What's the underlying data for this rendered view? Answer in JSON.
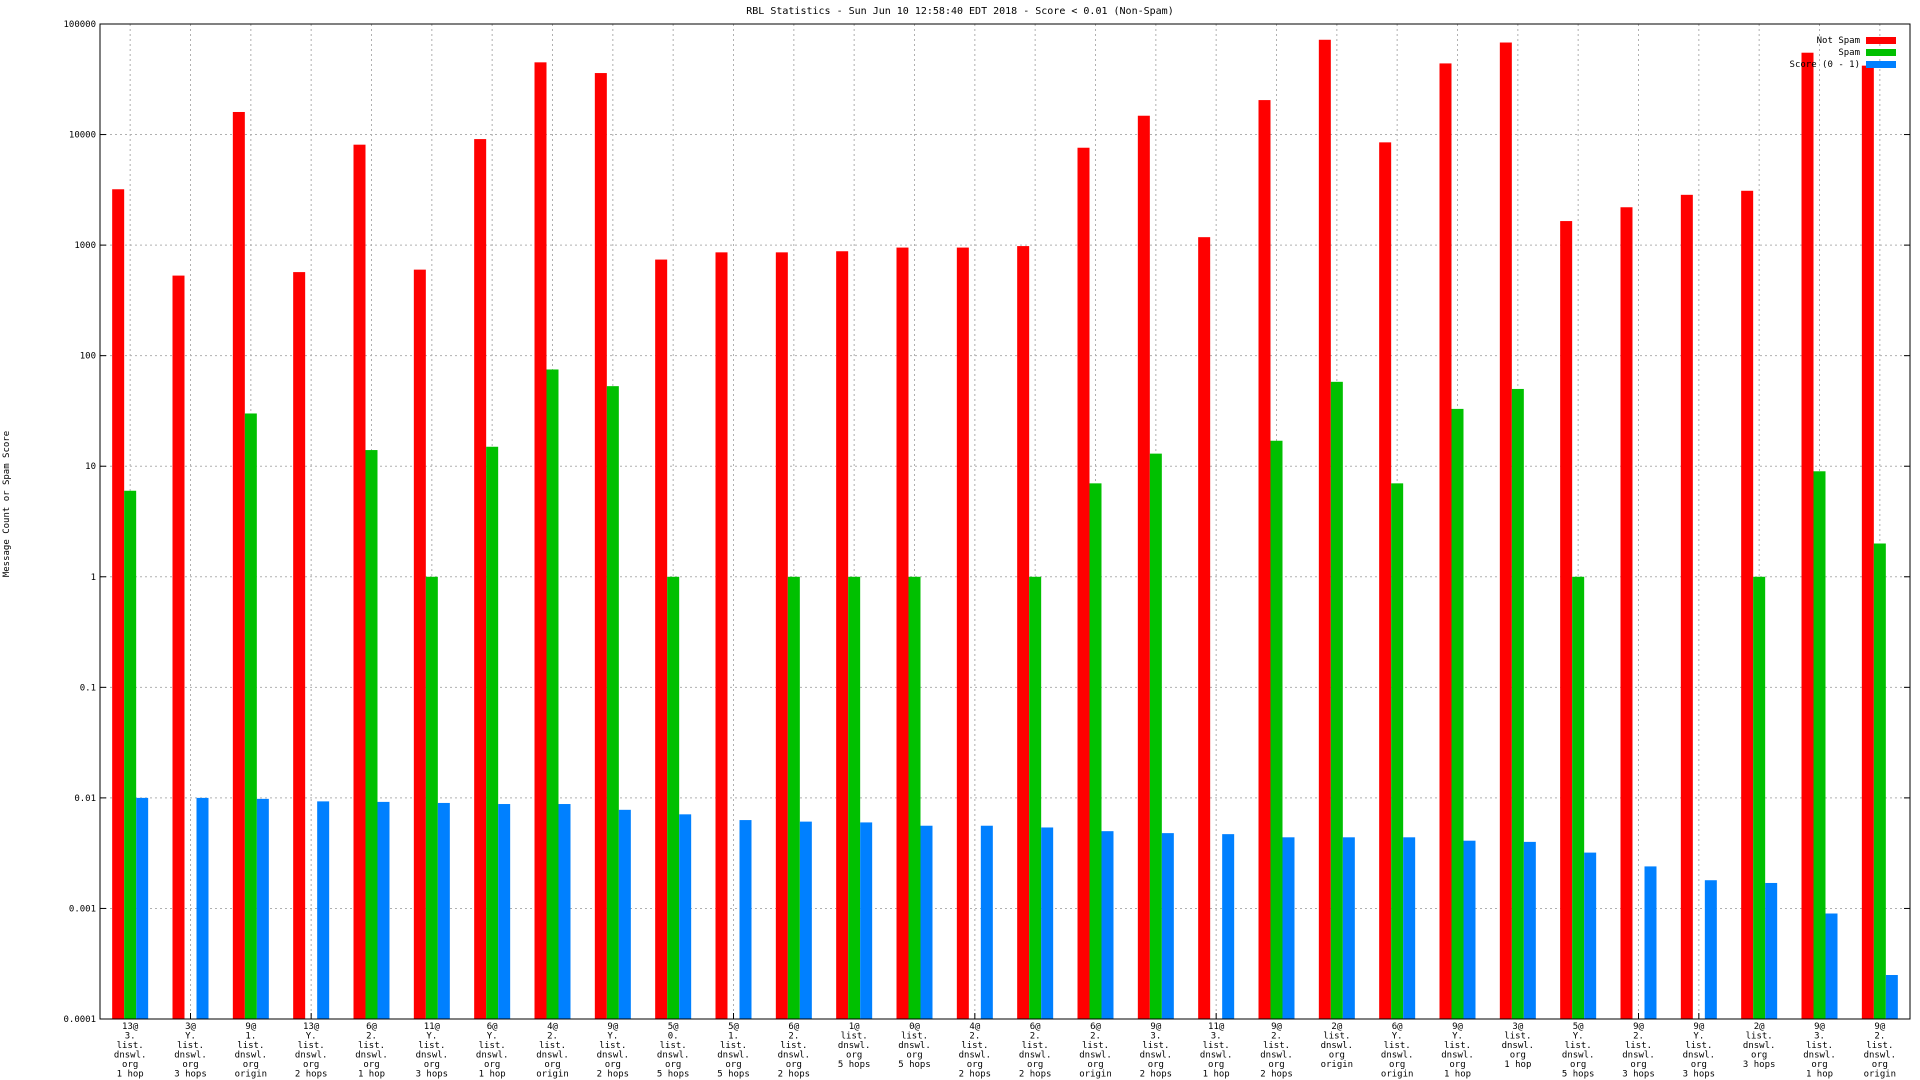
{
  "chart_data": {
    "type": "bar",
    "title": "RBL Statistics - Sun Jun 10 12:58:40 EDT 2018 - Score < 0.01 (Non-Spam)",
    "xlabel": "",
    "ylabel": "Message Count or Spam Score",
    "yscale": "log",
    "ylim": [
      0.0001,
      100000
    ],
    "yticks": [
      "0.0001",
      "0.001",
      "0.01",
      "0.1",
      "1",
      "10",
      "100",
      "1000",
      "10000",
      "100000"
    ],
    "grid": true,
    "legend_position": "top-right",
    "categories": [
      "13@\n3.\nlist.\ndnswl.\norg\n1 hop",
      "3@\nY.\nlist.\ndnswl.\norg\n3 hops",
      "9@\n1.\nlist.\ndnswl.\norg\norigin",
      "13@\nY.\nlist.\ndnswl.\norg\n2 hops",
      "6@\n2.\nlist.\ndnswl.\norg\n1 hop",
      "11@\nY.\nlist.\ndnswl.\norg\n3 hops",
      "6@\nY.\nlist.\ndnswl.\norg\n1 hop",
      "4@\n2.\nlist.\ndnswl.\norg\norigin",
      "9@\nY.\nlist.\ndnswl.\norg\n2 hops",
      "5@\n0.\nlist.\ndnswl.\norg\n5 hops",
      "5@\n1.\nlist.\ndnswl.\norg\n5 hops",
      "6@\n2.\nlist.\ndnswl.\norg\n2 hops",
      "1@\nlist.\ndnswl.\norg\n5 hops",
      "0@\nlist.\ndnswl.\norg\n5 hops",
      "4@\n2.\nlist.\ndnswl.\norg\n2 hops",
      "6@\n2.\nlist.\ndnswl.\norg\n2 hops",
      "6@\n2.\nlist.\ndnswl.\norg\norigin",
      "9@\n3.\nlist.\ndnswl.\norg\n2 hops",
      "11@\n3.\nlist.\ndnswl.\norg\n1 hop",
      "9@\n2.\nlist.\ndnswl.\norg\n2 hops",
      "2@\nlist.\ndnswl.\norg\norigin",
      "6@\nY.\nlist.\ndnswl.\norg\norigin",
      "9@\nY.\nlist.\ndnswl.\norg\n1 hop",
      "3@\nlist.\ndnswl.\norg\n1 hop",
      "5@\nY.\nlist.\ndnswl.\norg\n5 hops",
      "9@\n2.\nlist.\ndnswl.\norg\n3 hops",
      "9@\nY.\nlist.\ndnswl.\norg\n3 hops",
      "2@\nlist.\ndnswl.\norg\n3 hops",
      "9@\n3.\nlist.\ndnswl.\norg\n1 hop",
      "9@\n2.\nlist.\ndnswl.\norg\norigin"
    ],
    "series": [
      {
        "name": "Not Spam",
        "color": "#ff0000",
        "values": [
          3200,
          530,
          16000,
          570,
          8100,
          600,
          9100,
          45000,
          36000,
          740,
          860,
          860,
          880,
          950,
          950,
          980,
          7600,
          14800,
          1180,
          20500,
          72000,
          8500,
          44000,
          68000,
          1650,
          2200,
          2850,
          3100,
          55000,
          42000
        ]
      },
      {
        "name": "Spam",
        "color": "#00c000",
        "values": [
          6,
          null,
          30,
          null,
          14,
          1,
          15,
          75,
          53,
          1,
          null,
          1,
          1,
          1,
          null,
          1,
          7,
          13,
          null,
          17,
          58,
          7,
          33,
          50,
          1,
          null,
          null,
          1,
          9,
          2
        ]
      },
      {
        "name": "Score (0 - 1)",
        "color": "#0080ff",
        "values": [
          0.01,
          0.01,
          0.0098,
          0.0093,
          0.0092,
          0.009,
          0.0088,
          0.0088,
          0.0078,
          0.0071,
          0.0063,
          0.0061,
          0.006,
          0.0056,
          0.0056,
          0.0054,
          0.005,
          0.0048,
          0.0047,
          0.0044,
          0.0044,
          0.0044,
          0.0041,
          0.004,
          0.0032,
          0.0024,
          0.0018,
          0.0017,
          0.0009,
          0.00025
        ]
      }
    ]
  }
}
